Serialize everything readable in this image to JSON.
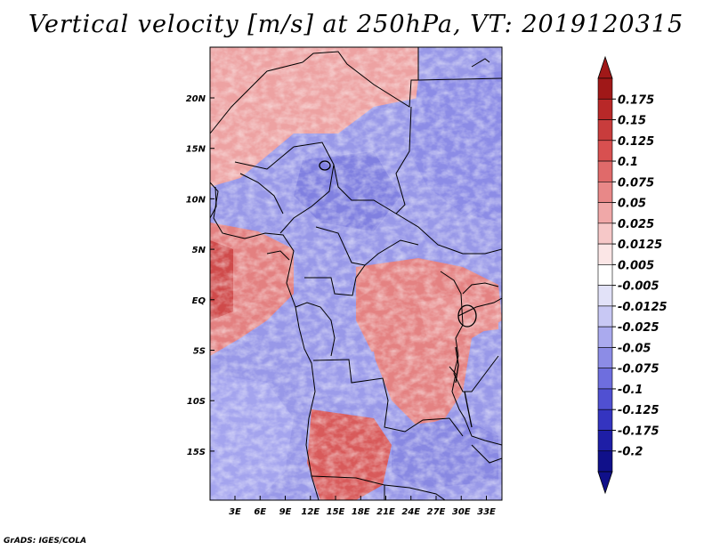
{
  "title": "Vertical velocity [m/s] at 250hPa, VT: 2019120315",
  "credit": "GrADS: IGES/COLA",
  "map": {
    "lon_range": [
      0,
      35
    ],
    "lat_range": [
      -20,
      25
    ],
    "lat_ticks": [
      "20N",
      "15N",
      "10N",
      "5N",
      "EQ",
      "5S",
      "10S",
      "15S"
    ],
    "lon_ticks": [
      "3E",
      "6E",
      "9E",
      "12E",
      "15E",
      "18E",
      "21E",
      "24E",
      "27E",
      "30E",
      "33E"
    ]
  },
  "colorbar": {
    "labels": [
      "0.175",
      "0.15",
      "0.125",
      "0.1",
      "0.075",
      "0.05",
      "0.025",
      "0.0125",
      "0.005",
      "-0.005",
      "-0.0125",
      "-0.025",
      "-0.05",
      "-0.075",
      "-0.1",
      "-0.125",
      "-0.175",
      "-0.2"
    ],
    "colors": [
      "#a01818",
      "#b82828",
      "#c83c3c",
      "#d85050",
      "#e06a6a",
      "#e88888",
      "#f0a8a8",
      "#f6c8c8",
      "#fbe6e6",
      "#ffffff",
      "#e2e2f8",
      "#c8c8f4",
      "#aaaaee",
      "#8c8ce6",
      "#6e6ede",
      "#5050d2",
      "#3434c0",
      "#1e1ea6",
      "#10108a"
    ],
    "over_color": "#a01818",
    "under_color": "#10108a"
  }
}
